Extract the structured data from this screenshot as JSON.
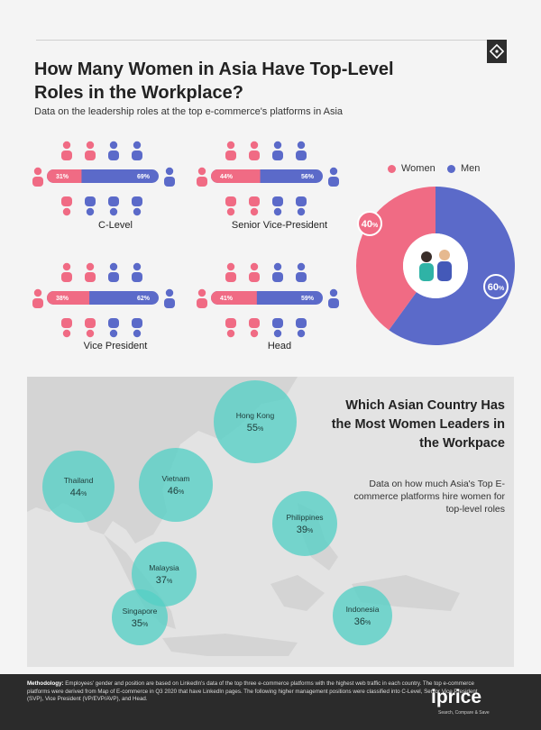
{
  "title": "How Many Women in Asia Have Top-Level Roles in the Workplace?",
  "subtitle": "Data on the leadership roles at the top e-commerce's platforms in Asia",
  "colors": {
    "women": "#f06b84",
    "men": "#5b6ac9",
    "map_bubble": "#55cfc5",
    "map_bg": "#e3e3e3",
    "land": "#d4d4d4"
  },
  "roles": [
    {
      "label": "C-Level",
      "women_pct": "31%",
      "men_pct": "69%"
    },
    {
      "label": "Senior Vice-President",
      "women_pct": "44%",
      "men_pct": "56%"
    },
    {
      "label": "Vice President",
      "women_pct": "38%",
      "men_pct": "62%"
    },
    {
      "label": "Head",
      "women_pct": "41%",
      "men_pct": "59%"
    }
  ],
  "legend": {
    "women": "Women",
    "men": "Men"
  },
  "donut": {
    "women_label": "40",
    "men_label": "60",
    "unit": "%"
  },
  "map": {
    "heading": "Which Asian Country Has the Most Women Leaders in the Workpace",
    "description": "Data on how much Asia's Top E-commerce platforms hire women for top-level roles"
  },
  "methodology": {
    "label": "Methodology:",
    "text": "Employees' gender and position are based on LinkedIn's data of the top three e-commerce platforms with the highest web traffic in each country. The top e-commerce platforms were derived from Map of E-commerce in Q3 2020 that have LinkedIn pages. The following higher management positions were classified into C-Level, Senior Vice President (SVP), Vice President (VP/EVP/AVP), and Head."
  },
  "brand": {
    "name": "iprice",
    "tagline": "Search, Compare & Save"
  },
  "chart_data": [
    {
      "type": "bar",
      "categories": [
        "C-Level",
        "Senior Vice-President",
        "Vice President",
        "Head"
      ],
      "series": [
        {
          "name": "Women",
          "values": [
            31,
            44,
            38,
            41
          ]
        },
        {
          "name": "Men",
          "values": [
            69,
            56,
            62,
            59
          ]
        }
      ],
      "ylim": [
        0,
        100
      ]
    },
    {
      "type": "pie",
      "labels": [
        "Women",
        "Men"
      ],
      "values": [
        40,
        60
      ]
    },
    {
      "type": "scatter",
      "categories": [
        "Hong Kong",
        "Thailand",
        "Vietnam",
        "Philippines",
        "Malaysia",
        "Singapore",
        "Indonesia"
      ],
      "values": [
        55,
        44,
        46,
        39,
        37,
        35,
        36
      ]
    }
  ]
}
